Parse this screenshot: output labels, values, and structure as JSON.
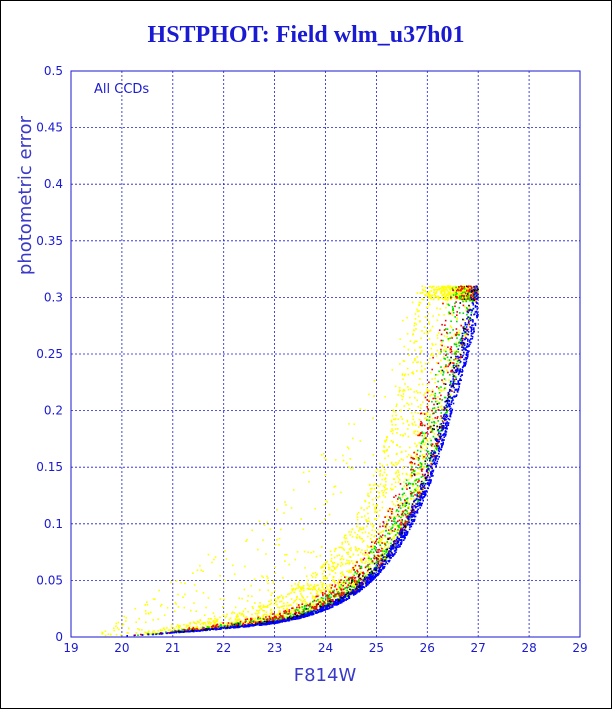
{
  "chart_data": {
    "type": "scatter",
    "title": "HSTPHOT: Field wlm_u37h01",
    "xlabel": "F814W",
    "ylabel": "photometric error",
    "annotation": "All CCDs",
    "xlim": [
      19,
      29
    ],
    "ylim": [
      0,
      0.5
    ],
    "xticks": [
      "19",
      "20",
      "21",
      "22",
      "23",
      "24",
      "25",
      "26",
      "27",
      "28",
      "29"
    ],
    "yticks": [
      "0",
      "0.05",
      "0.1",
      "0.15",
      "0.2",
      "0.25",
      "0.3",
      "0.35",
      "0.4",
      "0.45",
      "0.5"
    ],
    "grid": true,
    "error_cap": 0.31,
    "series": [
      {
        "color": "#ffff00",
        "envelope_scale": [
          1.0,
          2.6
        ],
        "points": 2600
      },
      {
        "color": "#00dd00",
        "envelope_scale": [
          1.0,
          1.45
        ],
        "points": 900
      },
      {
        "color": "#ff0000",
        "envelope_scale": [
          1.0,
          1.6
        ],
        "points": 700
      },
      {
        "color": "#0000ff",
        "envelope_scale": [
          0.92,
          1.08
        ],
        "points": 1500
      },
      {
        "color": "#000000",
        "envelope_scale": [
          1.0,
          1.3
        ],
        "points": 120
      }
    ],
    "lower_envelope": {
      "x": [
        20,
        21,
        22,
        23,
        23.5,
        24,
        24.5,
        25,
        25.5,
        26,
        26.5,
        27
      ],
      "y": [
        0.001,
        0.004,
        0.008,
        0.013,
        0.018,
        0.026,
        0.038,
        0.058,
        0.09,
        0.14,
        0.22,
        0.31
      ]
    }
  }
}
